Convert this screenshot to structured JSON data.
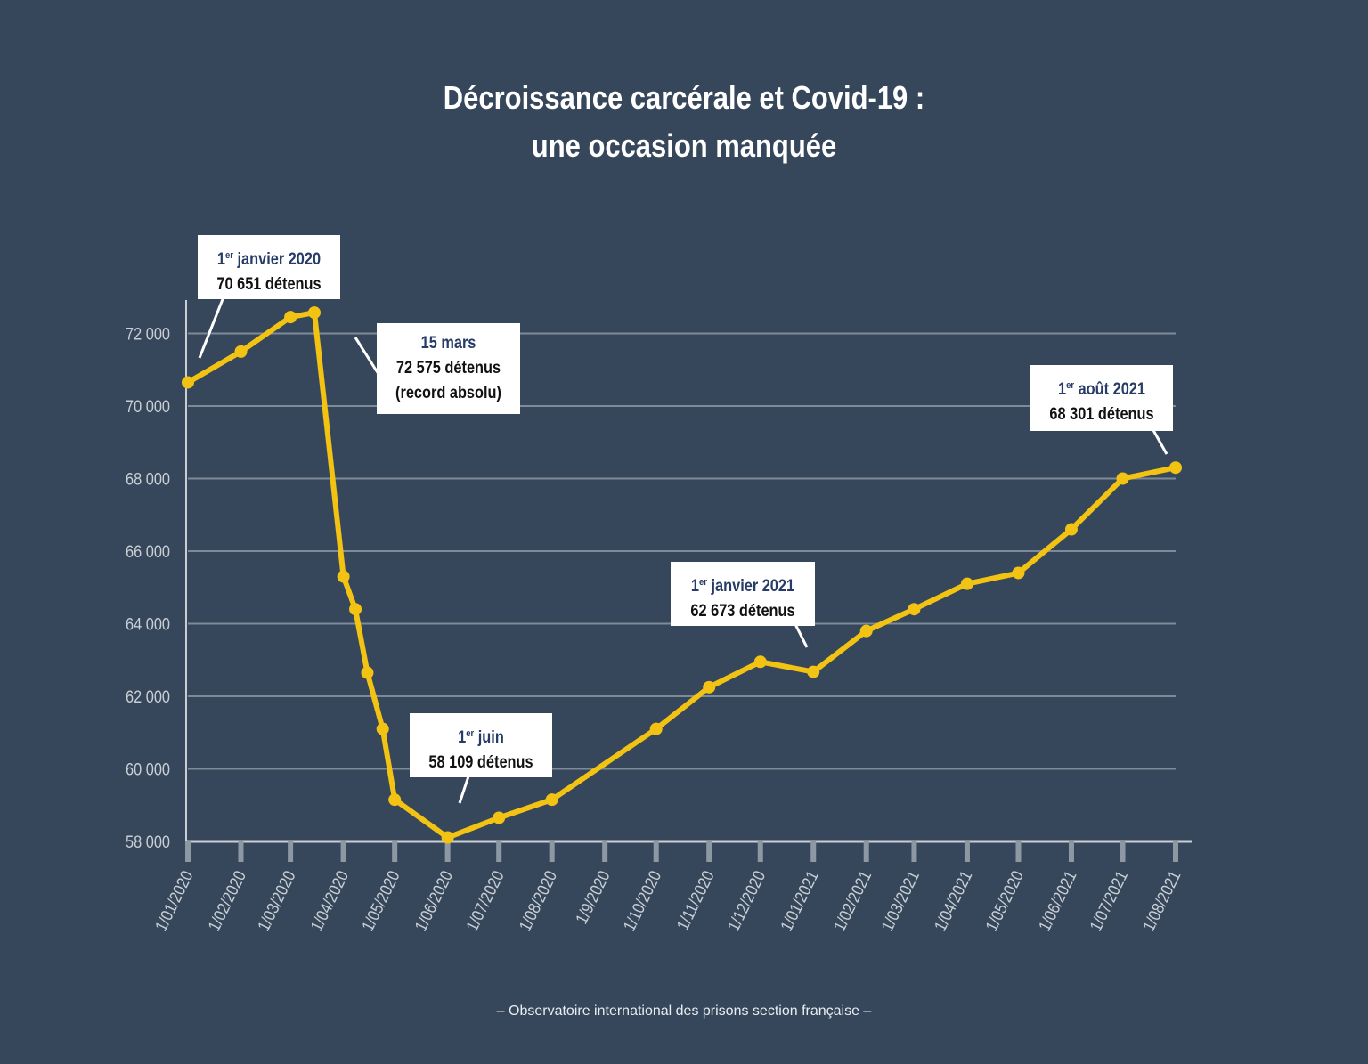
{
  "title_line1": "Décroissance carcérale et Covid-19 :",
  "title_line2": "une occasion manquée",
  "source": "– Observatoire international des prisons section française –",
  "colors": {
    "background": "#36475b",
    "line": "#f2c313",
    "grid": "#7d8a99",
    "axis": "#c9ced4",
    "callout_date": "#263b66"
  },
  "chart_data": {
    "type": "line",
    "ylim": [
      58000,
      73000
    ],
    "yticks": [
      "58 000",
      "60 000",
      "62 000",
      "64 000",
      "66 000",
      "68 000",
      "70 000",
      "72 000"
    ],
    "ytick_values": [
      58000,
      60000,
      62000,
      64000,
      66000,
      68000,
      70000,
      72000
    ],
    "xticks": [
      {
        "label": "1/01/2020",
        "date": "2020-01-01"
      },
      {
        "label": "1/02/2020",
        "date": "2020-02-01"
      },
      {
        "label": "1/03/2020",
        "date": "2020-03-01"
      },
      {
        "label": "1/04/2020",
        "date": "2020-04-01"
      },
      {
        "label": "1/05/2020",
        "date": "2020-05-01"
      },
      {
        "label": "1/06/2020",
        "date": "2020-06-01"
      },
      {
        "label": "1/07/2020",
        "date": "2020-07-01"
      },
      {
        "label": "1/08/2020",
        "date": "2020-08-01"
      },
      {
        "label": "1/9/2020",
        "date": "2020-09-01"
      },
      {
        "label": "1/10/2020",
        "date": "2020-10-01"
      },
      {
        "label": "1/11/2020",
        "date": "2020-11-01"
      },
      {
        "label": "1/12/2020",
        "date": "2020-12-01"
      },
      {
        "label": "1/01/2021",
        "date": "2021-01-01"
      },
      {
        "label": "1/02/2021",
        "date": "2021-02-01"
      },
      {
        "label": "1/03/2021",
        "date": "2021-03-01"
      },
      {
        "label": "1/04/2021",
        "date": "2021-04-01"
      },
      {
        "label": "1/05/2020",
        "date": "2021-05-01"
      },
      {
        "label": "1/06/2021",
        "date": "2021-06-01"
      },
      {
        "label": "1/07/2021",
        "date": "2021-07-01"
      },
      {
        "label": "1/08/2021",
        "date": "2021-08-01"
      }
    ],
    "series": [
      {
        "points": [
          {
            "x": "2020-01-01",
            "y": 70651
          },
          {
            "x": "2020-02-01",
            "y": 71500
          },
          {
            "x": "2020-03-01",
            "y": 72450
          },
          {
            "x": "2020-03-15",
            "y": 72575
          },
          {
            "x": "2020-04-01",
            "y": 65300
          },
          {
            "x": "2020-04-08",
            "y": 64400
          },
          {
            "x": "2020-04-15",
            "y": 62650
          },
          {
            "x": "2020-04-24",
            "y": 61100
          },
          {
            "x": "2020-05-01",
            "y": 59150
          },
          {
            "x": "2020-06-01",
            "y": 58109
          },
          {
            "x": "2020-07-01",
            "y": 58650
          },
          {
            "x": "2020-08-01",
            "y": 59150
          },
          {
            "x": "2020-10-01",
            "y": 61100
          },
          {
            "x": "2020-11-01",
            "y": 62250
          },
          {
            "x": "2020-12-01",
            "y": 62950
          },
          {
            "x": "2021-01-01",
            "y": 62673
          },
          {
            "x": "2021-02-01",
            "y": 63800
          },
          {
            "x": "2021-03-01",
            "y": 64400
          },
          {
            "x": "2021-04-01",
            "y": 65100
          },
          {
            "x": "2021-05-01",
            "y": 65400
          },
          {
            "x": "2021-06-01",
            "y": 66600
          },
          {
            "x": "2021-07-01",
            "y": 68000
          },
          {
            "x": "2021-08-01",
            "y": 68301
          }
        ]
      }
    ],
    "annotations": [
      {
        "sup": "er",
        "date_pre": "1",
        "date_post": " janvier 2020",
        "line2": "70 651 détenus",
        "line3": "",
        "x": "2020-01-01",
        "y": 70651
      },
      {
        "sup": "",
        "date_pre": "15 mars",
        "date_post": "",
        "line2": "72 575 détenus",
        "line3": "(record absolu)",
        "x": "2020-03-15",
        "y": 72575
      },
      {
        "sup": "er",
        "date_pre": "1",
        "date_post": " juin",
        "line2": "58 109 détenus",
        "line3": "",
        "x": "2020-06-01",
        "y": 58109
      },
      {
        "sup": "er",
        "date_pre": "1",
        "date_post": " janvier 2021",
        "line2": "62 673 détenus",
        "line3": "",
        "x": "2021-01-01",
        "y": 62673
      },
      {
        "sup": "er",
        "date_pre": "1",
        "date_post": " août 2021",
        "line2": "68 301 détenus",
        "line3": "",
        "x": "2021-08-01",
        "y": 68301
      }
    ]
  }
}
